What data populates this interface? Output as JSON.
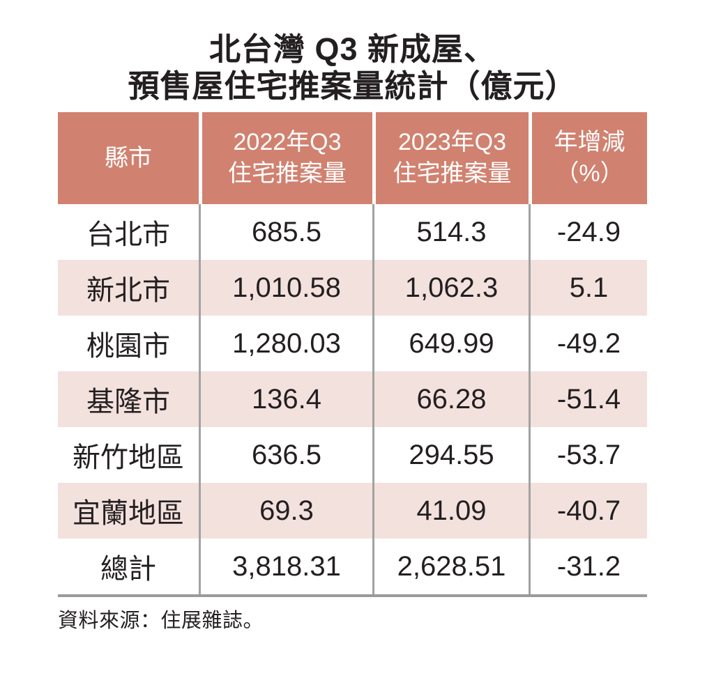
{
  "title": {
    "line1": "北台灣 Q3 新成屋、",
    "line2": "預售屋住宅推案量統計（億元）"
  },
  "table": {
    "headers": [
      {
        "line1": "縣市",
        "line2": ""
      },
      {
        "line1": "2022年Q3",
        "line2": "住宅推案量"
      },
      {
        "line1": "2023年Q3",
        "line2": "住宅推案量"
      },
      {
        "line1": "年增減",
        "line2": "（%）"
      }
    ],
    "rows": [
      {
        "city": "台北市",
        "y2022": "685.5",
        "y2023": "514.3",
        "yoy": "-24.9"
      },
      {
        "city": "新北市",
        "y2022": "1,010.58",
        "y2023": "1,062.3",
        "yoy": "5.1"
      },
      {
        "city": "桃園市",
        "y2022": "1,280.03",
        "y2023": "649.99",
        "yoy": "-49.2"
      },
      {
        "city": "基隆市",
        "y2022": "136.4",
        "y2023": "66.28",
        "yoy": "-51.4"
      },
      {
        "city": "新竹地區",
        "y2022": "636.5",
        "y2023": "294.55",
        "yoy": "-53.7"
      },
      {
        "city": "宜蘭地區",
        "y2022": "69.3",
        "y2023": "41.09",
        "yoy": "-40.7"
      },
      {
        "city": "總計",
        "y2022": "3,818.31",
        "y2023": "2,628.51",
        "yoy": "-31.2"
      }
    ]
  },
  "footer": {
    "source": "資料來源：住展雜誌。"
  },
  "colors": {
    "header_bg": "#d1816f",
    "stripe_bg": "#f3e1dd",
    "text": "#231f20",
    "header_text": "#ffffff",
    "column_divider": "#a2a2a2",
    "bottom_rule": "#9a9a9a"
  },
  "chart_data": {
    "type": "table",
    "title": "北台灣 Q3 新成屋、預售屋住宅推案量統計（億元）",
    "columns": [
      "縣市",
      "2022年Q3住宅推案量",
      "2023年Q3住宅推案量",
      "年增減（%）"
    ],
    "rows": [
      [
        "台北市",
        685.5,
        514.3,
        -24.9
      ],
      [
        "新北市",
        1010.58,
        1062.3,
        5.1
      ],
      [
        "桃園市",
        1280.03,
        649.99,
        -49.2
      ],
      [
        "基隆市",
        136.4,
        66.28,
        -51.4
      ],
      [
        "新竹地區",
        636.5,
        294.55,
        -53.7
      ],
      [
        "宜蘭地區",
        69.3,
        41.09,
        -40.7
      ],
      [
        "總計",
        3818.31,
        2628.51,
        -31.2
      ]
    ],
    "units": "億元",
    "source": "資料來源：住展雜誌。"
  }
}
